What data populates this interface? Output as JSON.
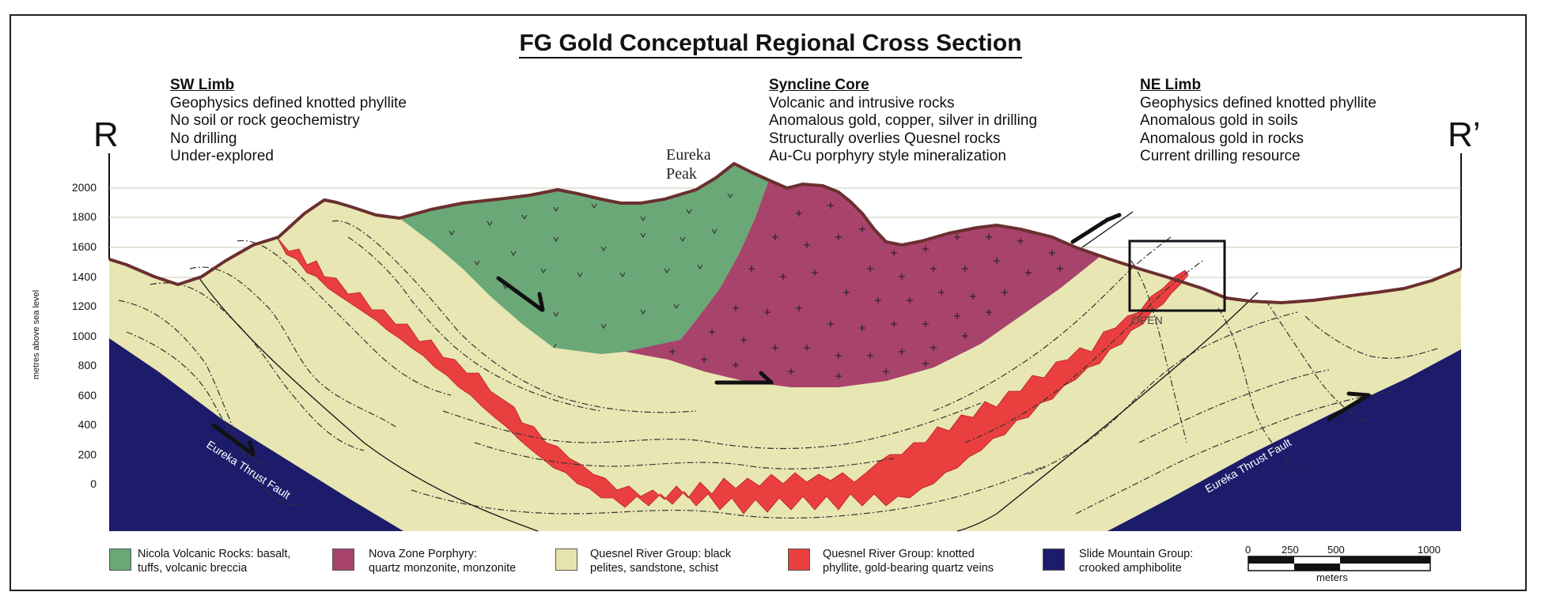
{
  "title": "FG Gold Conceptual Regional Cross Section",
  "section_ends": {
    "left": "R",
    "right": "R’"
  },
  "sw_limb": {
    "heading": "SW Limb",
    "lines": [
      "Geophysics defined knotted phyllite",
      "No soil or rock geochemistry",
      "No drilling",
      "Under-explored"
    ]
  },
  "syncline_core": {
    "heading": "Syncline Core",
    "lines": [
      "Volcanic and intrusive rocks",
      "Anomalous gold, copper, silver in drilling",
      "Structurally overlies Quesnel rocks",
      "Au-Cu porphyry style mineralization"
    ]
  },
  "ne_limb": {
    "heading": "NE Limb",
    "lines": [
      "Geophysics defined knotted phyllite",
      "Anomalous gold in soils",
      "Anomalous gold in rocks",
      "Current drilling resource"
    ]
  },
  "peak_label": [
    "Eureka",
    "Peak"
  ],
  "y_axis": {
    "title": "metres above sea level",
    "ticks": [
      "2000",
      "1800",
      "1600",
      "1400",
      "1200",
      "1000",
      "800",
      "600",
      "400",
      "200",
      "0"
    ]
  },
  "fault_labels": {
    "left": "Eureka Thrust Fault",
    "right": "Eureka Thrust Fault"
  },
  "open_label": "OPEN",
  "legend": [
    {
      "color": "#6aa877",
      "line1": "Nicola Volcanic Rocks: basalt,",
      "line2": "tuffs, volcanic breccia"
    },
    {
      "color": "#a8436c",
      "line1": "Nova Zone Porphyry:",
      "line2": "quartz monzonite, monzonite"
    },
    {
      "color": "#e6e4ad",
      "line1": "Quesnel River Group: black",
      "line2": "pelites, sandstone, schist"
    },
    {
      "color": "#ea3f3f",
      "line1": "Quesnel River Group: knotted",
      "line2": "phyllite, gold-bearing quartz veins"
    },
    {
      "color": "#1c1c6b",
      "line1": "Slide Mountain Group:",
      "line2": "crooked amphibolite"
    }
  ],
  "scale_bar": {
    "labels": [
      "0",
      "250",
      "500",
      "1000"
    ],
    "unit": "meters"
  },
  "colors": {
    "volcanic": "#6aa877",
    "porphyry": "#a8436c",
    "pelite": "#e6e4ad",
    "phyllite": "#ea3f3f",
    "amphibolite": "#1c1c6b",
    "topography": "#6b2f2f"
  }
}
